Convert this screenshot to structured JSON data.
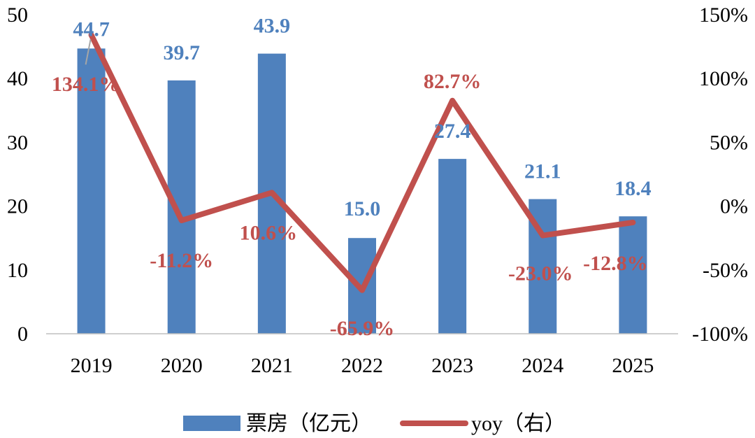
{
  "chart_data": {
    "type": "bar+line",
    "categories": [
      "2019",
      "2020",
      "2021",
      "2022",
      "2023",
      "2024",
      "2025"
    ],
    "series": [
      {
        "name": "票房（亿元）",
        "type": "bar",
        "axis": "left",
        "values": [
          44.7,
          39.7,
          43.9,
          15.0,
          27.4,
          21.1,
          18.4
        ],
        "labels": [
          "44.7",
          "39.7",
          "43.9",
          "15.0",
          "27.4",
          "21.1",
          "18.4"
        ],
        "color": "#4F81BD"
      },
      {
        "name": "yoy（右）",
        "type": "line",
        "axis": "right",
        "values": [
          134.1,
          -11.2,
          10.6,
          -65.9,
          82.7,
          -23.0,
          -12.8
        ],
        "labels": [
          "134.1%",
          "-11.2%",
          "10.6%",
          "-65.9%",
          "82.7%",
          "-23.0%",
          "-12.8%"
        ],
        "color": "#C0504D"
      }
    ],
    "y_left": {
      "ylim": [
        0,
        50
      ],
      "ticks": [
        "0",
        "10",
        "20",
        "30",
        "40",
        "50"
      ]
    },
    "y_right": {
      "ylim": [
        -100,
        150
      ],
      "ticks": [
        "-100%",
        "-50%",
        "0%",
        "50%",
        "100%",
        "150%"
      ]
    },
    "legend": {
      "position": "bottom",
      "entries": [
        "票房（亿元）",
        "yoy（右）"
      ]
    },
    "grid": false
  }
}
